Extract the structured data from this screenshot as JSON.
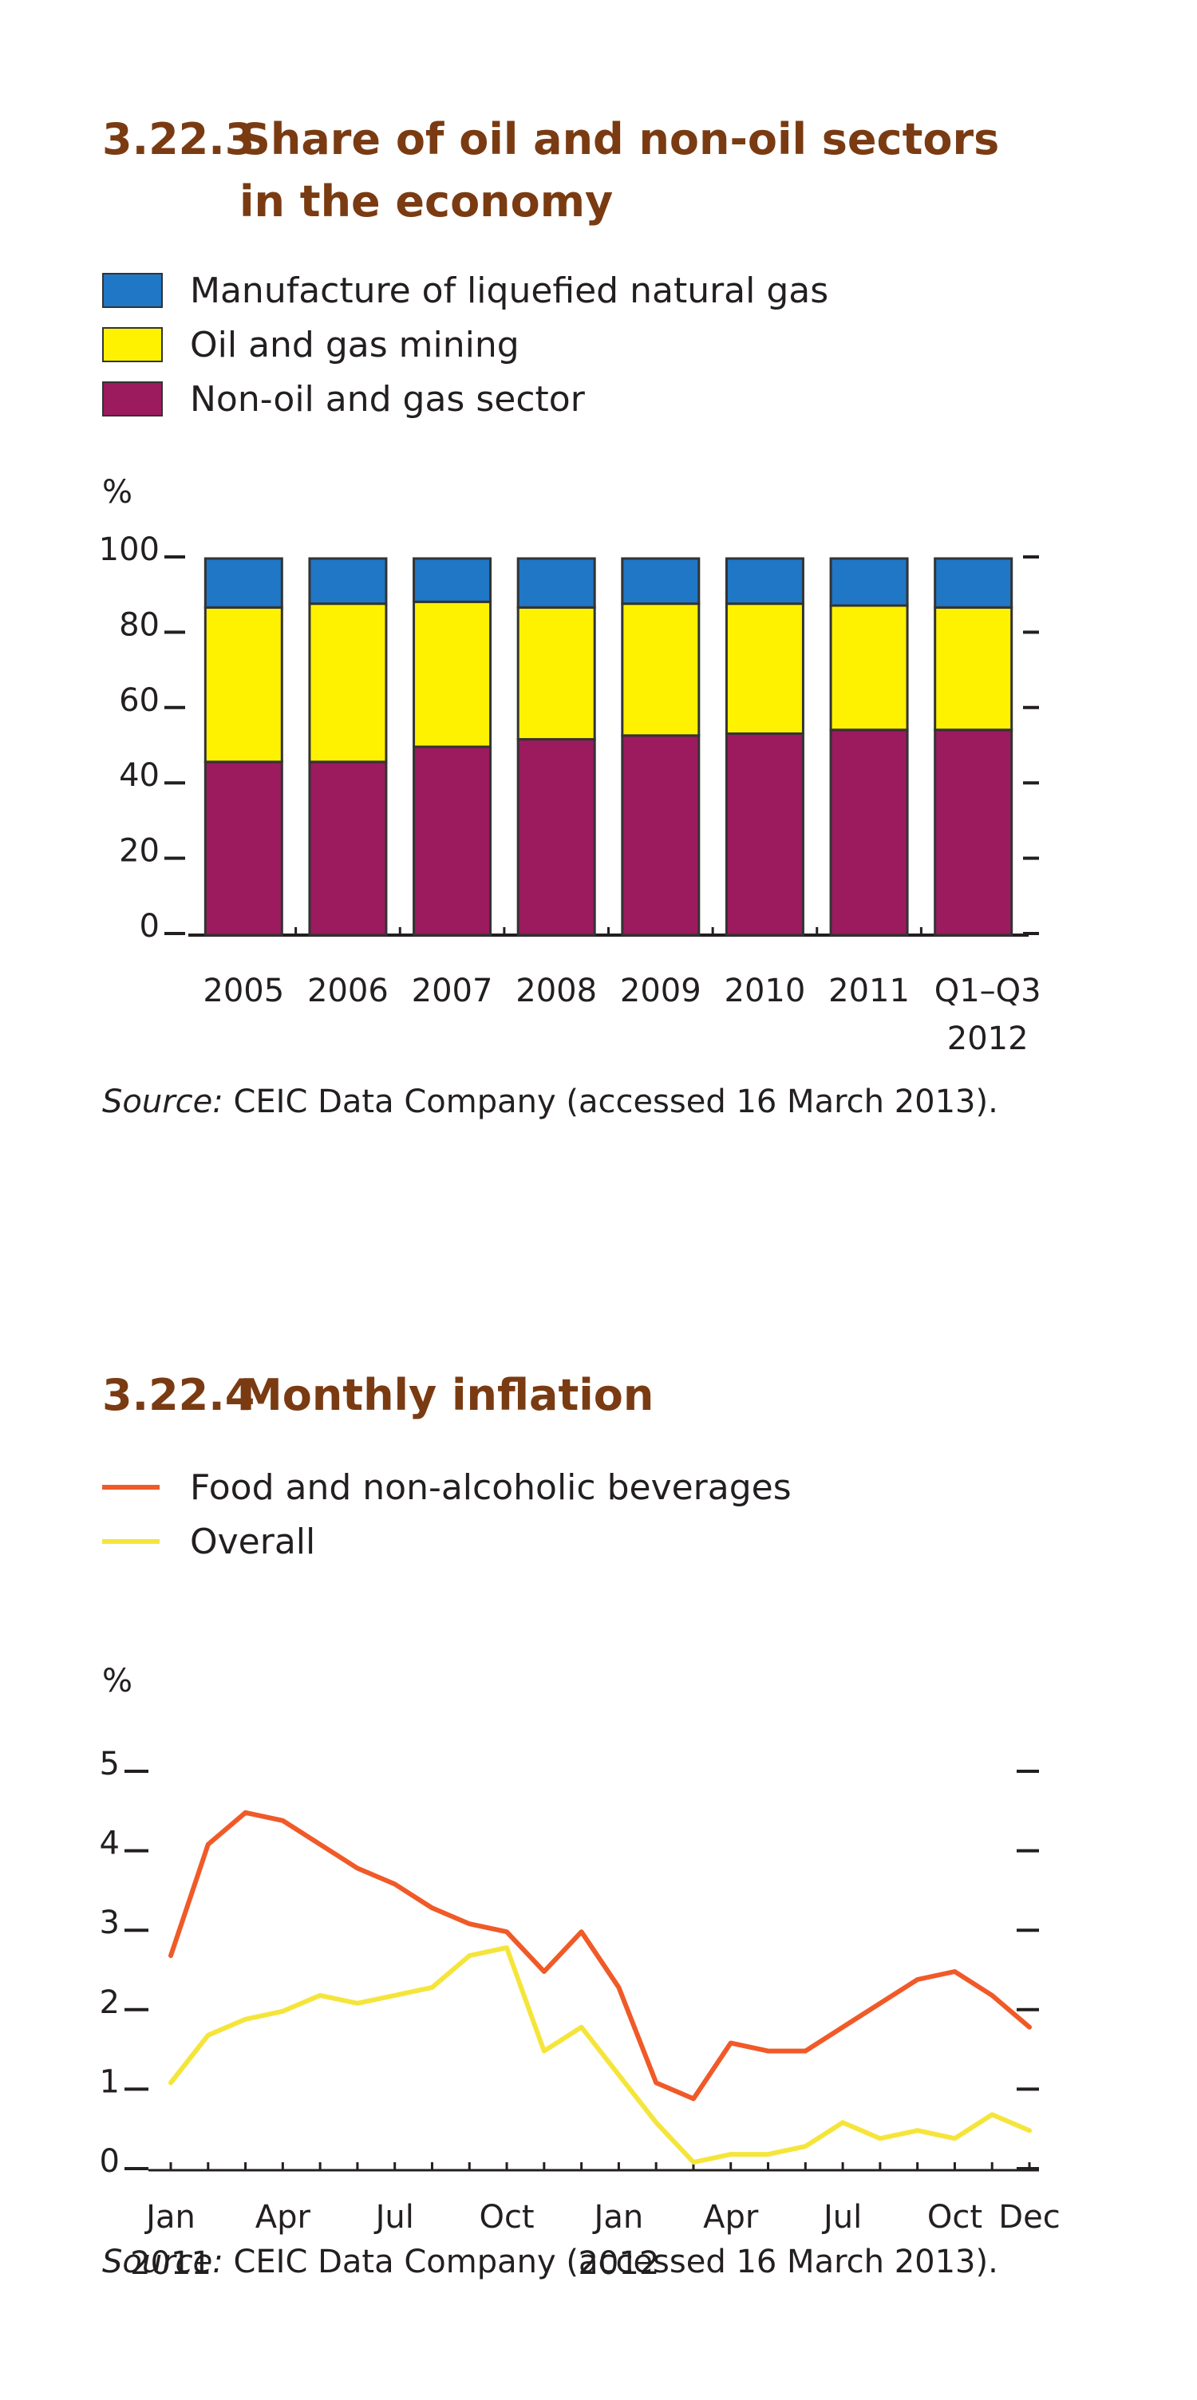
{
  "chart_data": [
    {
      "type": "bar",
      "stacked": true,
      "number": "3.22.3",
      "title": "Share of oil and non-oil sectors in the economy",
      "title_line1": "Share of oil and non-oil sectors",
      "title_line2": "in the economy",
      "ylabel": "%",
      "ylim": [
        0,
        100
      ],
      "yticks": [
        0,
        20,
        40,
        60,
        80,
        100
      ],
      "categories": [
        "2005",
        "2006",
        "2007",
        "2008",
        "2009",
        "2010",
        "2011",
        "Q1–Q3 2012"
      ],
      "category_lines": [
        [
          "2005"
        ],
        [
          "2006"
        ],
        [
          "2007"
        ],
        [
          "2008"
        ],
        [
          "2009"
        ],
        [
          "2010"
        ],
        [
          "2011"
        ],
        [
          "Q1–Q3",
          "2012"
        ]
      ],
      "series": [
        {
          "name": "Non-oil and gas sector",
          "color": "#9b1b5e",
          "values": [
            46,
            46,
            50,
            52,
            53,
            53.5,
            54.5,
            54.5
          ]
        },
        {
          "name": "Oil and gas mining",
          "color": "#fff200",
          "values": [
            41,
            42,
            38.5,
            35,
            35,
            34.5,
            33,
            32.5
          ]
        },
        {
          "name": "Manufacture of liquefied natural gas",
          "color": "#1f77c6",
          "values": [
            13,
            12,
            11.5,
            13,
            12,
            12,
            12.5,
            13
          ]
        }
      ],
      "legend": [
        {
          "label": "Manufacture of liquefied natural gas",
          "color": "#1f77c6"
        },
        {
          "label": "Oil and gas mining",
          "color": "#fff200"
        },
        {
          "label": "Non-oil and gas sector",
          "color": "#9b1b5e"
        }
      ],
      "legend_position": "top-left",
      "grid": false,
      "source_label": "Source:",
      "source_text": " CEIC Data Company (accessed 16 March 2013)."
    },
    {
      "type": "line",
      "number": "3.22.4",
      "title": "Monthly inflation",
      "ylabel": "%",
      "ylim": [
        0,
        5
      ],
      "yticks": [
        0,
        1,
        2,
        3,
        4,
        5
      ],
      "x": [
        "2011-01",
        "2011-02",
        "2011-03",
        "2011-04",
        "2011-05",
        "2011-06",
        "2011-07",
        "2011-08",
        "2011-09",
        "2011-10",
        "2011-11",
        "2011-12",
        "2012-01",
        "2012-02",
        "2012-03",
        "2012-04",
        "2012-05",
        "2012-06",
        "2012-07",
        "2012-08",
        "2012-09",
        "2012-10",
        "2012-11",
        "2012-12"
      ],
      "xtick_labels": [
        {
          "index": 0,
          "lines": [
            "Jan",
            "2011"
          ]
        },
        {
          "index": 3,
          "lines": [
            "Apr"
          ]
        },
        {
          "index": 6,
          "lines": [
            "Jul"
          ]
        },
        {
          "index": 9,
          "lines": [
            "Oct"
          ]
        },
        {
          "index": 12,
          "lines": [
            "Jan",
            "2012"
          ]
        },
        {
          "index": 15,
          "lines": [
            "Apr"
          ]
        },
        {
          "index": 18,
          "lines": [
            "Jul"
          ]
        },
        {
          "index": 21,
          "lines": [
            "Oct"
          ]
        },
        {
          "index": 23,
          "lines": [
            "Dec"
          ]
        }
      ],
      "series": [
        {
          "name": "Food and non-alcoholic beverages",
          "color": "#f05a28",
          "values": [
            2.7,
            4.1,
            4.5,
            4.4,
            4.1,
            3.8,
            3.6,
            3.3,
            3.1,
            3.0,
            2.5,
            3.0,
            2.3,
            1.1,
            0.9,
            1.6,
            1.5,
            1.5,
            1.8,
            2.1,
            2.4,
            2.5,
            2.2,
            1.8
          ]
        },
        {
          "name": "Overall",
          "color": "#f5e53b",
          "values": [
            1.1,
            1.7,
            1.9,
            2.0,
            2.2,
            2.1,
            2.2,
            2.3,
            2.7,
            2.8,
            1.5,
            1.8,
            1.2,
            0.6,
            0.1,
            0.2,
            0.2,
            0.3,
            0.6,
            0.4,
            0.5,
            0.4,
            0.7,
            0.5
          ]
        }
      ],
      "legend": [
        {
          "label": "Food and non-alcoholic beverages",
          "color": "#f05a28"
        },
        {
          "label": "Overall",
          "color": "#f5e53b"
        }
      ],
      "legend_position": "top-left",
      "grid": false,
      "source_label": "Source:",
      "source_text": " CEIC Data Company (accessed 16 March 2013)."
    }
  ]
}
